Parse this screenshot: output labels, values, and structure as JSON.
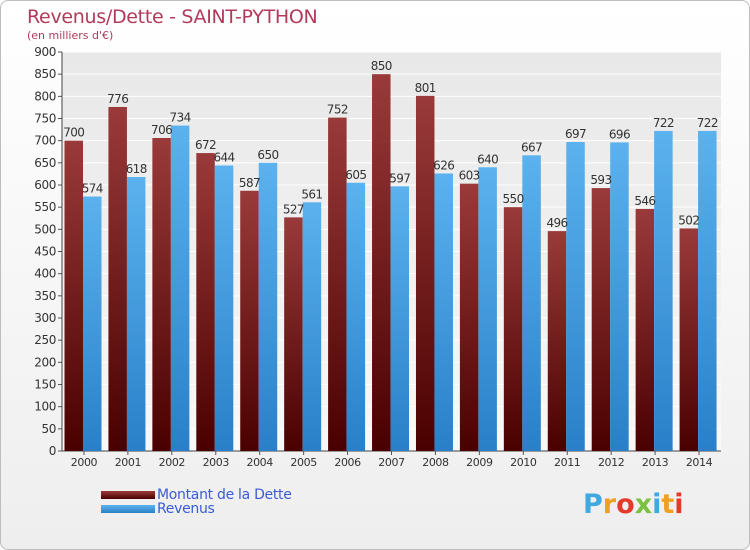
{
  "chart_data": {
    "type": "bar",
    "title": "Revenus/Dette - SAINT-PYTHON",
    "subtitle": "(en milliers d'€)",
    "categories": [
      "2000",
      "2001",
      "2002",
      "2003",
      "2004",
      "2005",
      "2006",
      "2007",
      "2008",
      "2009",
      "2010",
      "2011",
      "2012",
      "2013",
      "2014"
    ],
    "series": [
      {
        "name": "Montant de la Dette",
        "color": "#7a1a1a",
        "values": [
          700,
          776,
          706,
          672,
          587,
          527,
          752,
          850,
          801,
          603,
          550,
          496,
          593,
          546,
          502
        ]
      },
      {
        "name": "Revenus",
        "color": "#4aa3e6",
        "values": [
          574,
          618,
          734,
          644,
          650,
          561,
          605,
          597,
          626,
          640,
          667,
          697,
          696,
          722,
          722
        ]
      }
    ],
    "ylim": [
      0,
      900
    ],
    "yticks": [
      "0",
      "50",
      "100",
      "150",
      "200",
      "250",
      "300",
      "350",
      "400",
      "450",
      "500",
      "550",
      "600",
      "650",
      "700",
      "750",
      "800",
      "850",
      "900"
    ],
    "grid": true,
    "legend_position": "bottom-left"
  },
  "logo": {
    "letters": [
      "P",
      "r",
      "o",
      "x",
      "i",
      "t",
      "i"
    ],
    "colors": [
      "#3fa9e0",
      "#f0a020",
      "#e53a2a",
      "#7cc242",
      "#3fa9e0",
      "#f0a020",
      "#e53a2a"
    ]
  }
}
